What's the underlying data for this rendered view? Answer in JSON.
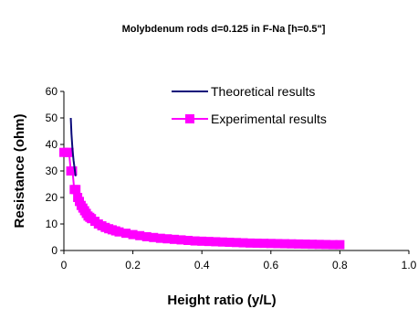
{
  "chart_data": {
    "type": "line",
    "title": "Molybdenum rods d=0.125 in F-Na [h=0.5\"]",
    "xlabel": "Height ratio (y/L)",
    "ylabel": "Resistance (ohm)",
    "xlim": [
      0,
      1.0
    ],
    "ylim": [
      0,
      60
    ],
    "x_ticks": [
      "0",
      "0.2",
      "0.4",
      "0.6",
      "0.8",
      "1.0"
    ],
    "y_ticks": [
      "0",
      "10",
      "20",
      "30",
      "40",
      "50",
      "60"
    ],
    "grid": false,
    "legend_position": "top-right inside",
    "series": [
      {
        "name": "Theoretical results",
        "color": "#0a0a7a",
        "marker": "none",
        "x": [
          0.02,
          0.022,
          0.025,
          0.028,
          0.031,
          0.034
        ],
        "y": [
          50,
          44,
          38,
          34,
          31,
          28
        ]
      },
      {
        "name": "Experimental results",
        "color": "#ff00ff",
        "marker": "square",
        "x": [
          0.0,
          0.01,
          0.015,
          0.02,
          0.025,
          0.03,
          0.035,
          0.04,
          0.045,
          0.05,
          0.055,
          0.06,
          0.065,
          0.07,
          0.075,
          0.08,
          0.09,
          0.1,
          0.11,
          0.12,
          0.13,
          0.14,
          0.15,
          0.16,
          0.18,
          0.2,
          0.22,
          0.24,
          0.26,
          0.28,
          0.3,
          0.32,
          0.34,
          0.36,
          0.38,
          0.4,
          0.42,
          0.44,
          0.46,
          0.48,
          0.5,
          0.52,
          0.54,
          0.56,
          0.58,
          0.6,
          0.62,
          0.64,
          0.66,
          0.68,
          0.7,
          0.72,
          0.74,
          0.76,
          0.78,
          0.8
        ],
        "y": [
          37,
          37,
          37,
          30,
          30,
          23,
          23,
          20,
          18.5,
          17,
          16,
          15,
          14,
          13,
          12.5,
          12,
          11,
          10,
          9.3,
          8.7,
          8.2,
          7.8,
          7.4,
          7,
          6.5,
          6,
          5.6,
          5.2,
          4.9,
          4.6,
          4.4,
          4.2,
          4,
          3.8,
          3.6,
          3.5,
          3.4,
          3.3,
          3.2,
          3.1,
          3,
          2.9,
          2.8,
          2.75,
          2.7,
          2.65,
          2.6,
          2.55,
          2.5,
          2.45,
          2.4,
          2.35,
          2.3,
          2.25,
          2.2,
          2.2
        ]
      }
    ]
  }
}
